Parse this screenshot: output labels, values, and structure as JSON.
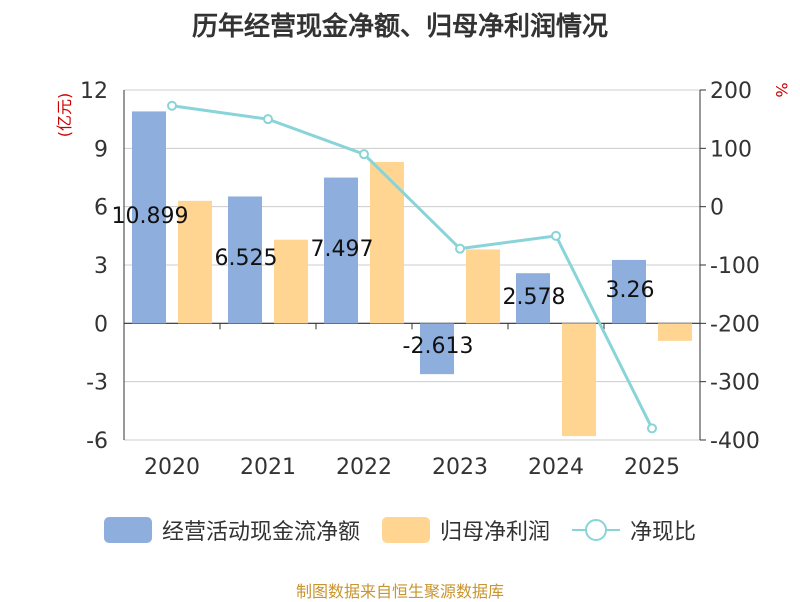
{
  "chart_title": "历年经营现金净额、归母净利润情况",
  "source": "制图数据来自恒生聚源数据库",
  "colors": {
    "cash_flow": "#8eaedd",
    "net_profit": "#ffd591",
    "ratio_line": "#89d4d8",
    "axis_unit": "#cc0000",
    "grid": "#cccccc"
  },
  "legend": {
    "cash_flow": "经营活动现金流净额",
    "net_profit": "归母净利润",
    "ratio": "净现比"
  },
  "chart_data": {
    "type": "bar",
    "title": "历年经营现金净额、归母净利润情况",
    "categories": [
      "2020",
      "2021",
      "2022",
      "2023",
      "2024",
      "2025"
    ],
    "left_axis": {
      "unit_label": "(亿元)",
      "ylim": [
        -6,
        12
      ],
      "ticks": [
        "12",
        "9",
        "6",
        "3",
        "0",
        "-3",
        "-6"
      ],
      "tick_values": [
        12,
        9,
        6,
        3,
        0,
        -3,
        -6
      ]
    },
    "right_axis": {
      "unit_label": "%",
      "ylim": [
        -400,
        200
      ],
      "ticks": [
        "200",
        "100",
        "0",
        "-100",
        "-200",
        "-300",
        "-400"
      ],
      "tick_values": [
        200,
        100,
        0,
        -100,
        -200,
        -300,
        -400
      ]
    },
    "series": [
      {
        "name": "经营活动现金流净额",
        "type": "bar",
        "axis": "left",
        "values": [
          10.899,
          6.525,
          7.497,
          -2.613,
          2.578,
          3.26
        ],
        "labels": [
          "10.899",
          "6.525",
          "7.497",
          "-2.613",
          "2.578",
          "3.26"
        ]
      },
      {
        "name": "归母净利润",
        "type": "bar",
        "axis": "left",
        "values": [
          6.3,
          4.3,
          8.3,
          3.8,
          -5.8,
          -0.9
        ]
      },
      {
        "name": "净现比",
        "type": "line",
        "axis": "right",
        "values": [
          173,
          150,
          90,
          -72,
          -50,
          -380
        ]
      }
    ]
  }
}
